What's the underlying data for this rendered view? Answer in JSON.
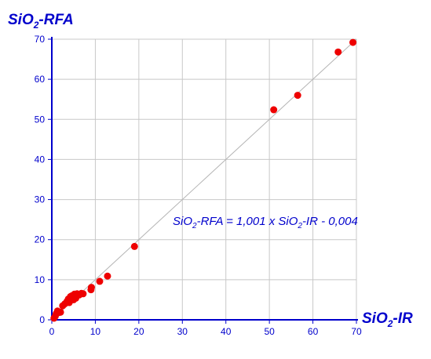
{
  "chart_data": {
    "type": "scatter",
    "title": "",
    "ylabel": {
      "main": "SiO",
      "sub": "2",
      "rest": "-RFA"
    },
    "xlabel": {
      "main": "SiO",
      "sub": "2",
      "rest": "-IR"
    },
    "xlim": [
      0,
      70
    ],
    "ylim": [
      0,
      70
    ],
    "xticks": [
      "0",
      "10",
      "20",
      "30",
      "40",
      "50",
      "60",
      "70"
    ],
    "yticks": [
      "0",
      "10",
      "20",
      "30",
      "40",
      "50",
      "60",
      "70"
    ],
    "grid": true,
    "equation": {
      "a": "SiO",
      "b": "2",
      "c": "-RFA = 1,001 x  SiO",
      "d": "2",
      "e": "-IR - 0,004"
    },
    "regression": {
      "slope": 1.001,
      "intercept": -0.004
    },
    "colors": {
      "points": "#ee0000",
      "axis": "#0000cc",
      "grid": "#c8c8c8",
      "fit": "#b4b4b4"
    },
    "points": [
      [
        0.5,
        0.4
      ],
      [
        0.8,
        0.9
      ],
      [
        1.0,
        1.5
      ],
      [
        1.3,
        2.2
      ],
      [
        1.6,
        1.8
      ],
      [
        2.0,
        1.9
      ],
      [
        2.5,
        3.5
      ],
      [
        3.0,
        4.0
      ],
      [
        3.5,
        4.6
      ],
      [
        3.8,
        5.2
      ],
      [
        4.0,
        4.3
      ],
      [
        4.3,
        5.8
      ],
      [
        4.6,
        6.0
      ],
      [
        5.0,
        5.0
      ],
      [
        5.2,
        6.4
      ],
      [
        5.5,
        5.4
      ],
      [
        5.8,
        6.5
      ],
      [
        6.3,
        6.2
      ],
      [
        6.8,
        6.6
      ],
      [
        7.2,
        6.5
      ],
      [
        9.0,
        7.5
      ],
      [
        9.1,
        8.1
      ],
      [
        11.0,
        9.6
      ],
      [
        12.8,
        10.9
      ],
      [
        19.0,
        18.3
      ],
      [
        51.0,
        52.4
      ],
      [
        56.5,
        56.0
      ],
      [
        65.8,
        66.8
      ],
      [
        69.2,
        69.2
      ]
    ]
  }
}
